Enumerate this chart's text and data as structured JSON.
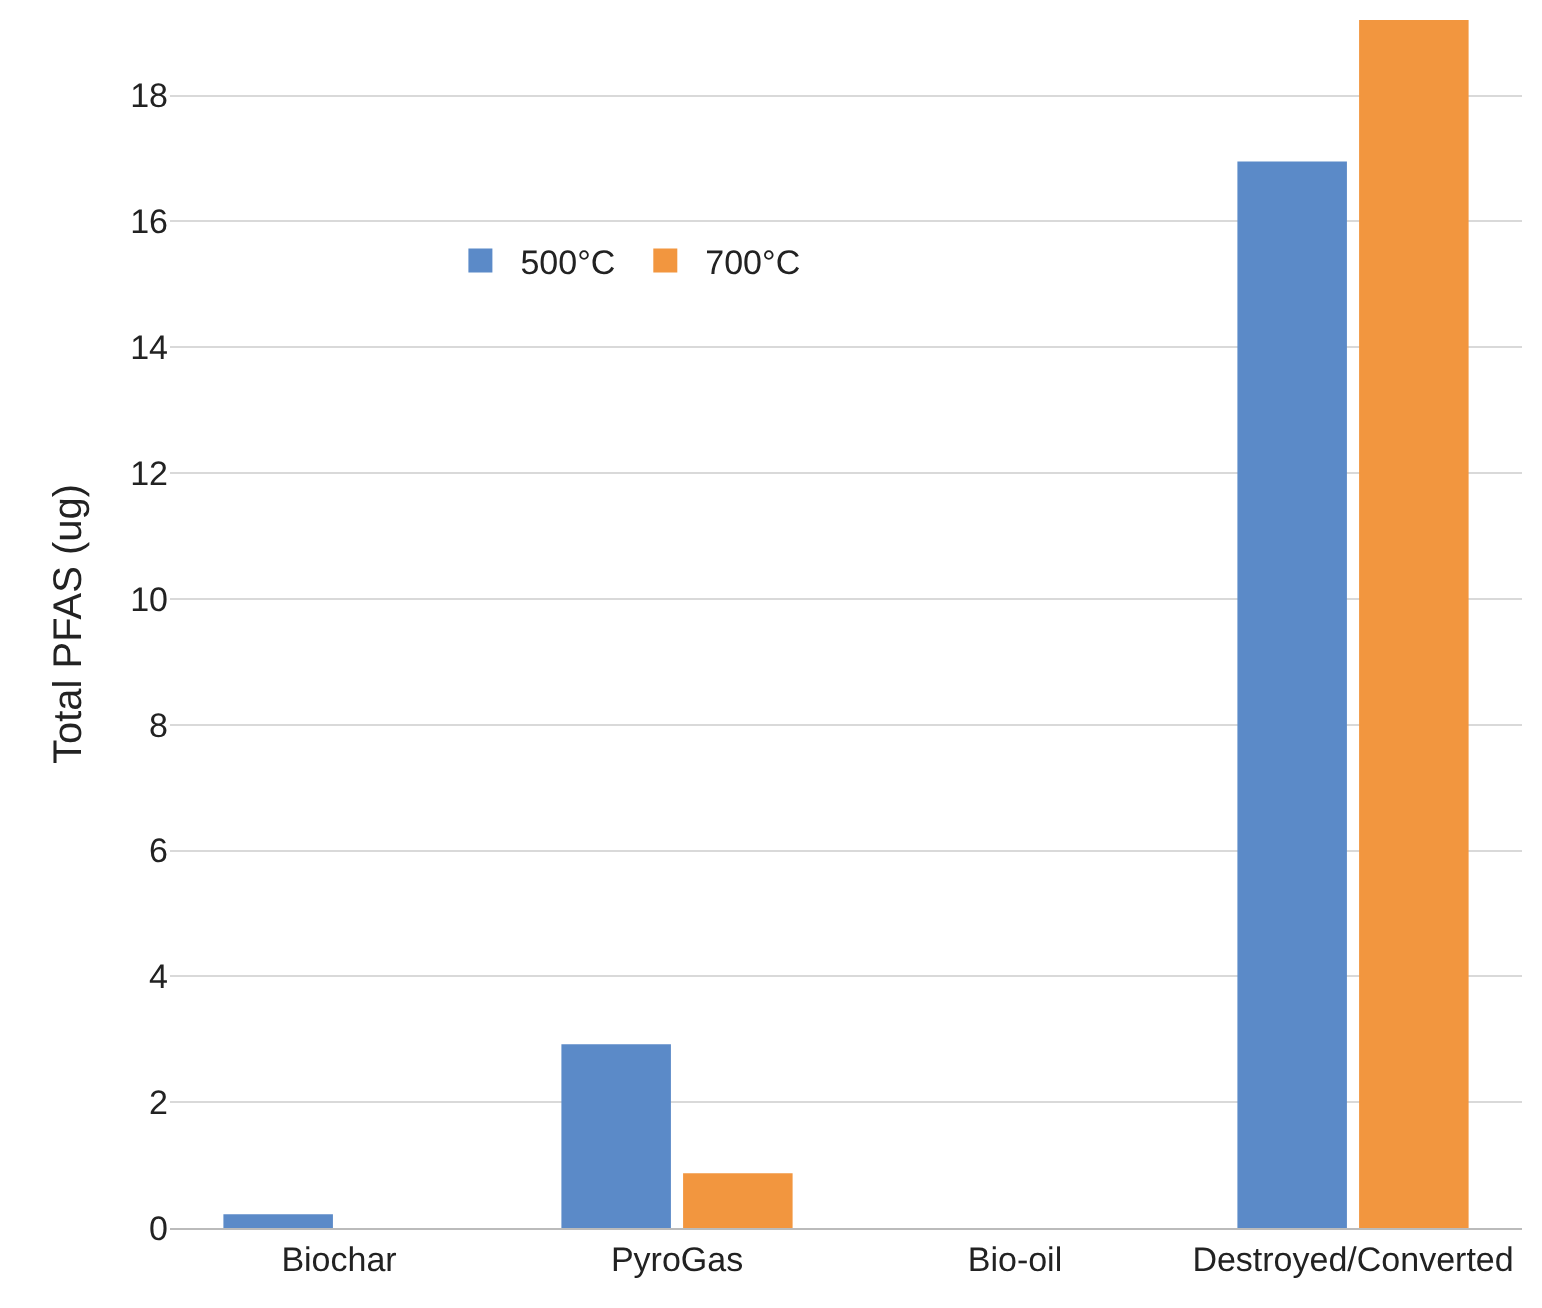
{
  "chart_data": {
    "type": "bar",
    "ylabel": "Total PFAS (ug)",
    "categories": [
      "Biochar",
      "PyroGas",
      "Bio-oil",
      "Destroyed/Converted"
    ],
    "series": [
      {
        "name": "500°C",
        "color": "#5b8ac8",
        "values": [
          0.22,
          2.92,
          0,
          16.95
        ]
      },
      {
        "name": "700°C",
        "color": "#f2963f",
        "values": [
          0,
          0.87,
          0,
          19.2
        ]
      }
    ],
    "ylim": [
      0,
      19.2
    ],
    "yticks": [
      0,
      2,
      4,
      6,
      8,
      10,
      12,
      14,
      16,
      18
    ],
    "grid": "y",
    "legend": "top left"
  }
}
